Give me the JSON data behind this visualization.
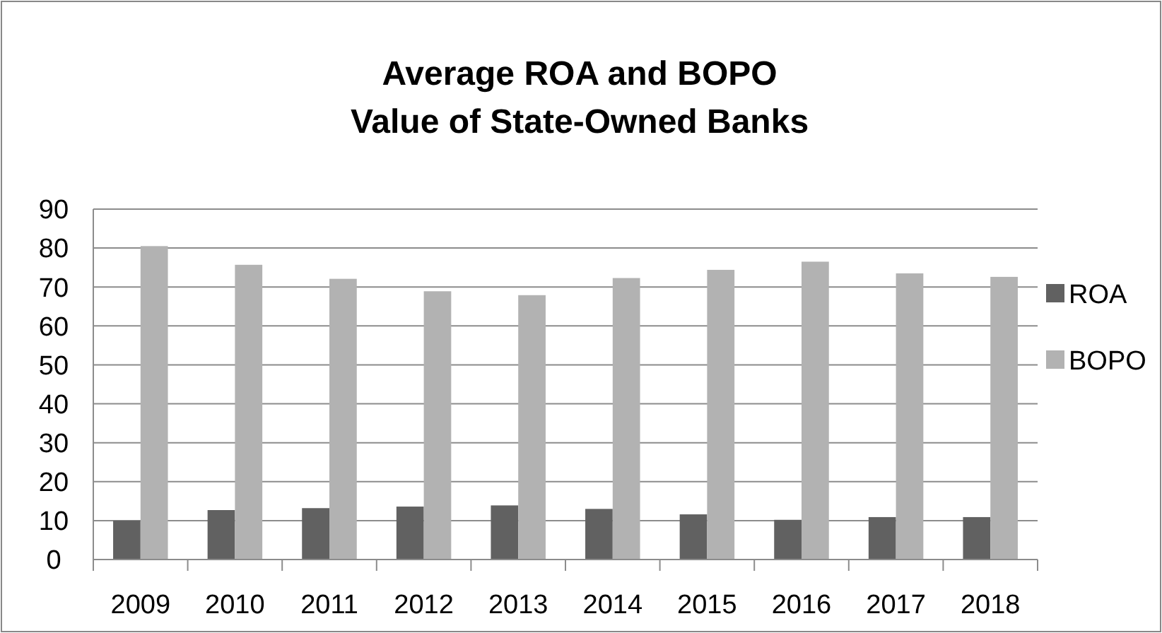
{
  "chart_data": {
    "type": "bar",
    "title": "Average ROA and BOPO\nValue of State-Owned Banks",
    "categories": [
      "2009",
      "2010",
      "2011",
      "2012",
      "2013",
      "2014",
      "2015",
      "2016",
      "2017",
      "2018"
    ],
    "series": [
      {
        "name": "ROA",
        "color": "#616161",
        "values": [
          10,
          12.7,
          13.2,
          13.6,
          13.9,
          13,
          11.6,
          10.2,
          10.9,
          10.9
        ]
      },
      {
        "name": "BOPO",
        "color": "#b2b2b2",
        "values": [
          80.5,
          75.7,
          72.1,
          68.9,
          67.9,
          72.3,
          74.4,
          76.5,
          73.5,
          72.6
        ]
      }
    ],
    "ylim": [
      0,
      90
    ],
    "yticks": [
      0,
      10,
      20,
      30,
      40,
      50,
      60,
      70,
      80,
      90
    ],
    "grid": "y",
    "legend": "right"
  }
}
